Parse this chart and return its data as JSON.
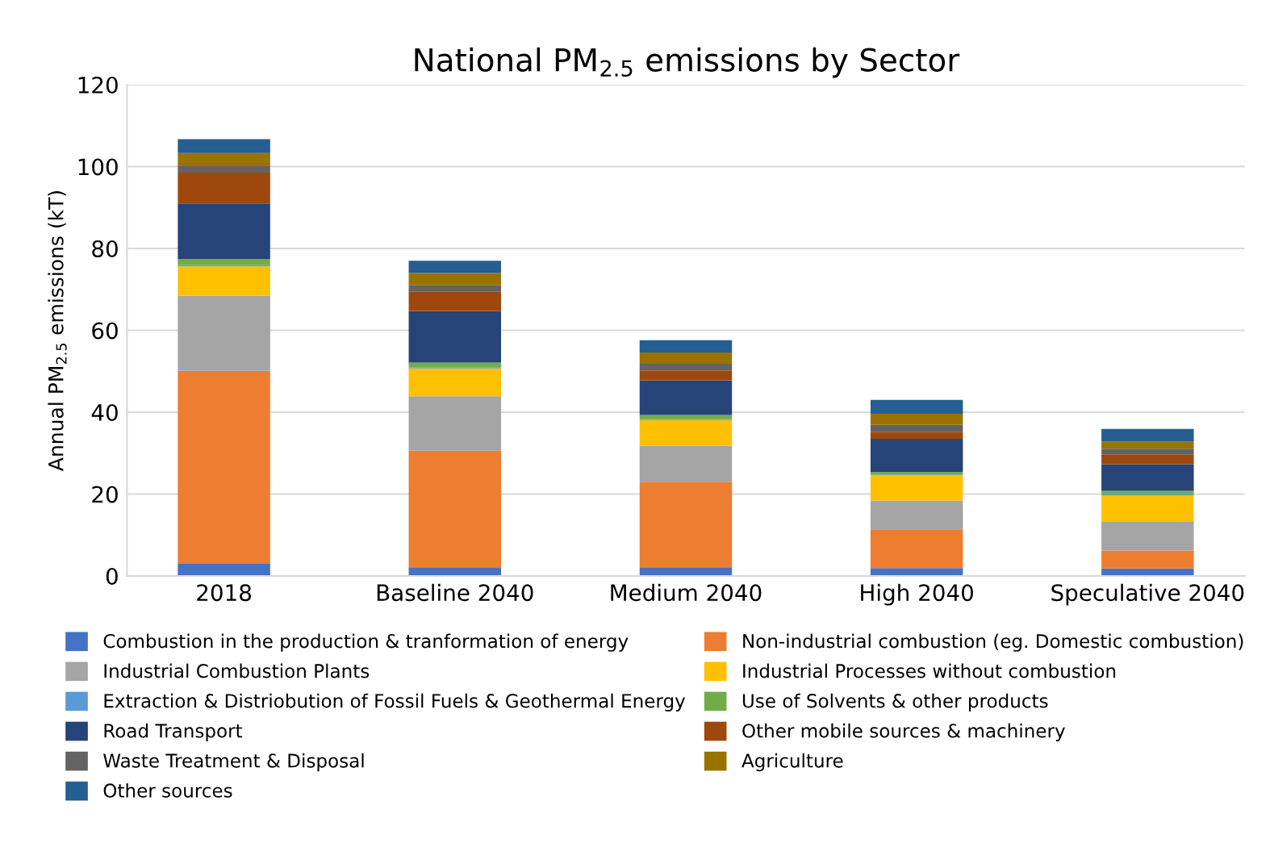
{
  "chart_data": {
    "type": "bar",
    "stacked": true,
    "title": "National PM$_{2.5}$ emissions by Sector",
    "ylabel": "Annual PM$_{2.5}$ emissions (kT)",
    "categories": [
      "2018",
      "Baseline 2040",
      "Medium 2040",
      "High 2040",
      "Speculative 2040"
    ],
    "series": [
      {
        "name": "Combustion in the production & tranformation of energy",
        "color": "#4472c4",
        "values": [
          3.1,
          2.1,
          2.1,
          1.9,
          1.8
        ]
      },
      {
        "name": "Non-industrial combustion (eg. Domestic combustion)",
        "color": "#ed7d31",
        "values": [
          47,
          28.5,
          20.9,
          9.5,
          4.4
        ]
      },
      {
        "name": "Industrial Combustion Plants",
        "color": "#a5a5a5",
        "values": [
          18.3,
          13.3,
          8.8,
          7.0,
          7.0
        ]
      },
      {
        "name": "Industrial Processes without combustion",
        "color": "#ffc000",
        "values": [
          7.2,
          6.8,
          6.3,
          6.2,
          6.5
        ]
      },
      {
        "name": "Extraction & Distriobution of Fossil Fuels & Geothermal Energy",
        "color": "#5b9bd5",
        "values": [
          0.3,
          0.3,
          0.2,
          0.2,
          0.2
        ]
      },
      {
        "name": "Use of Solvents & other products",
        "color": "#70ad47",
        "values": [
          1.5,
          1.1,
          1.0,
          0.6,
          0.9
        ]
      },
      {
        "name": "Road Transport",
        "color": "#264478",
        "values": [
          13.6,
          12.6,
          8.5,
          8.1,
          6.5
        ]
      },
      {
        "name": "Other mobile sources & machinery",
        "color": "#9e480e",
        "values": [
          7.5,
          4.8,
          2.4,
          1.7,
          2.4
        ]
      },
      {
        "name": "Waste Treatment & Disposal",
        "color": "#636363",
        "values": [
          1.6,
          1.6,
          1.6,
          1.7,
          1.4
        ]
      },
      {
        "name": "Agriculture",
        "color": "#997300",
        "values": [
          3.2,
          2.9,
          2.8,
          2.7,
          1.7
        ]
      },
      {
        "name": "Other sources",
        "color": "#255e91",
        "values": [
          3.4,
          3.0,
          3.0,
          3.4,
          3.1
        ]
      }
    ],
    "ylim": [
      0,
      120
    ],
    "yticks": [
      0,
      20,
      40,
      60,
      80,
      100,
      120
    ],
    "grid": "y",
    "legend": "bottom"
  }
}
